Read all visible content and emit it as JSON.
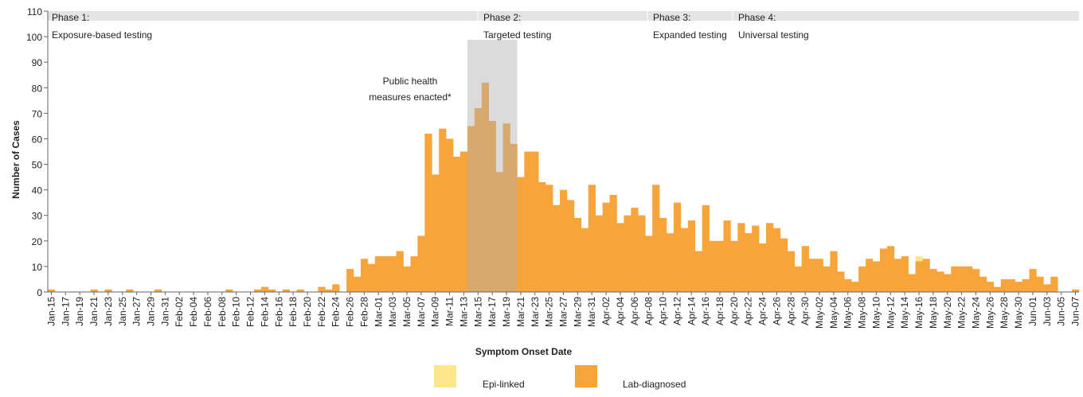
{
  "chart_data": {
    "type": "stacked_bar",
    "x_label": "Symptom Onset Date",
    "y_label": "Number of Cases",
    "annotation": [
      "Public health",
      "measures enacted*"
    ],
    "phases": [
      {
        "name": "Phase 1:",
        "label": "Exposure-based testing"
      },
      {
        "name": "Phase 2:",
        "label": "Targeted testing"
      },
      {
        "name": "Phase 3:",
        "label": "Expanded testing"
      },
      {
        "name": "Phase 4:",
        "label": "Universal testing"
      }
    ],
    "ylim": [
      0,
      110
    ],
    "yticks": [
      0,
      10,
      20,
      30,
      40,
      50,
      60,
      70,
      80,
      90,
      100,
      110
    ],
    "categories": [
      "Jan-15",
      null,
      "Jan-17",
      null,
      "Jan-19",
      null,
      "Jan-21",
      null,
      "Jan-23",
      null,
      "Jan-25",
      null,
      "Jan-27",
      null,
      "Jan-29",
      null,
      "Jan-31",
      null,
      "Feb-02",
      null,
      "Feb-04",
      null,
      "Feb-06",
      null,
      "Feb-08",
      null,
      "Feb-10",
      null,
      "Feb-12",
      null,
      "Feb-14",
      null,
      "Feb-16",
      null,
      "Feb-18",
      null,
      "Feb-20",
      null,
      "Feb-22",
      null,
      "Feb-24",
      null,
      "Feb-26",
      null,
      "Feb-28",
      null,
      "Mar-01",
      null,
      "Mar-03",
      null,
      "Mar-05",
      null,
      "Mar-07",
      null,
      "Mar-09",
      null,
      "Mar-11",
      null,
      "Mar-13",
      null,
      "Mar-15",
      null,
      "Mar-17",
      null,
      "Mar-19",
      null,
      "Mar-21",
      null,
      "Mar-23",
      null,
      "Mar-25",
      null,
      "Mar-27",
      null,
      "Mar-29",
      null,
      "Mar-31",
      null,
      "Apr-02",
      null,
      "Apr-04",
      null,
      "Apr-06",
      null,
      "Apr-08",
      null,
      "Apr-10",
      null,
      "Apr-12",
      null,
      "Apr-14",
      null,
      "Apr-16",
      null,
      "Apr-18",
      null,
      "Apr-20",
      null,
      "Apr-22",
      null,
      "Apr-24",
      null,
      "Apr-26",
      null,
      "Apr-28",
      null,
      "Apr-30",
      null,
      "May-02",
      null,
      "May-04",
      null,
      "May-06",
      null,
      "May-08",
      null,
      "May-10",
      null,
      "May-12",
      null,
      "May-14",
      null,
      "May-16",
      null,
      "May-18",
      null,
      "May-20",
      null,
      "May-22",
      null,
      "May-24",
      null,
      "May-26",
      null,
      "May-28",
      null,
      "May-30",
      null,
      "Jun-01",
      null,
      "Jun-03",
      null,
      "Jun-05",
      null,
      "Jun-07"
    ],
    "series": [
      {
        "name": "Lab-diagnosed",
        "color": "#f7a43a",
        "values": [
          1,
          0,
          0,
          0,
          0,
          0,
          1,
          0,
          1,
          0,
          0,
          1,
          0,
          0,
          0,
          1,
          0,
          0,
          0,
          0,
          0,
          0,
          0,
          0,
          0,
          1,
          0,
          0,
          0,
          1,
          2,
          1,
          0,
          1,
          0,
          1,
          0,
          0,
          2,
          1,
          3,
          0,
          9,
          6,
          13,
          11,
          14,
          14,
          14,
          16,
          10,
          14,
          22,
          62,
          46,
          64,
          60,
          53,
          55,
          65,
          72,
          82,
          67,
          47,
          66,
          58,
          45,
          55,
          55,
          43,
          42,
          34,
          40,
          36,
          29,
          25,
          42,
          30,
          35,
          38,
          27,
          30,
          33,
          30,
          22,
          42,
          29,
          23,
          35,
          25,
          28,
          16,
          34,
          20,
          20,
          28,
          20,
          27,
          23,
          26,
          19,
          27,
          25,
          21,
          16,
          10,
          18,
          13,
          13,
          10,
          16,
          8,
          5,
          4,
          10,
          13,
          12,
          17,
          18,
          13,
          14,
          7,
          12,
          13,
          9,
          8,
          7,
          10,
          10,
          10,
          9,
          6,
          4,
          2,
          5,
          5,
          4,
          5,
          9,
          6,
          3,
          6,
          0,
          0,
          1
        ]
      },
      {
        "name": "Epi-linked",
        "color": "#fde68c",
        "values": [
          0,
          0,
          0,
          0,
          0,
          0,
          0,
          0,
          0,
          0,
          0,
          0,
          0,
          0,
          0,
          0,
          0,
          0,
          0,
          0,
          0,
          0,
          0,
          0,
          0,
          0,
          0,
          0,
          0,
          0,
          0,
          0,
          0,
          0,
          0,
          0,
          0,
          0,
          0,
          0,
          0,
          0,
          0,
          0,
          0,
          0,
          0,
          0,
          0,
          0,
          0,
          0,
          0,
          0,
          0,
          0,
          0,
          0,
          0,
          0,
          0,
          0,
          0,
          0,
          0,
          0,
          0,
          0,
          0,
          0,
          0,
          0,
          0,
          0,
          0,
          0,
          0,
          0,
          0,
          0,
          0,
          0,
          0,
          0,
          0,
          0,
          0,
          0,
          0,
          0,
          0,
          0,
          0,
          0,
          0,
          0,
          0,
          0,
          0,
          0,
          0,
          0,
          0,
          0,
          0,
          0,
          0,
          0,
          0,
          0,
          0,
          0,
          0,
          0,
          0,
          0,
          0,
          0,
          0,
          0,
          0,
          0,
          2,
          0,
          0,
          0,
          0,
          0,
          0,
          0,
          0,
          0,
          0,
          0,
          0,
          0,
          0,
          0,
          0,
          0,
          0,
          0,
          0,
          0,
          0
        ]
      }
    ]
  }
}
